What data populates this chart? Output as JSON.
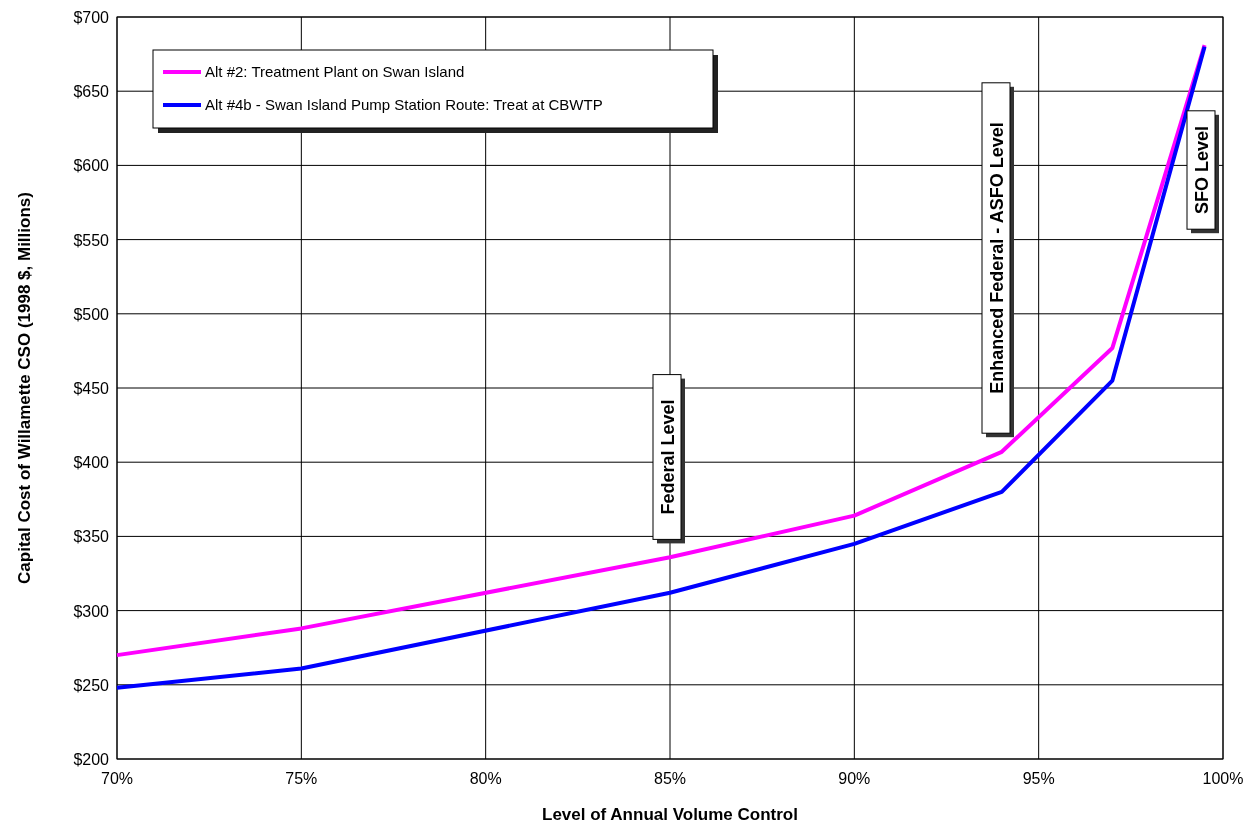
{
  "chart_data": {
    "type": "line",
    "xlabel": "Level of Annual Volume Control",
    "ylabel": "Capital Cost of Willamette CSO (1998 $, Millions)",
    "series": [
      {
        "name": "Alt #2: Treatment Plant on Swan Island",
        "color": "#ff00ff",
        "x": [
          70,
          75,
          85,
          90,
          94,
          97,
          99.5
        ],
        "values": [
          270,
          288,
          336,
          364,
          407,
          477,
          681
        ]
      },
      {
        "name": "Alt #4b - Swan Island Pump Station Route: Treat at CBWTP",
        "color": "#0000ff",
        "x": [
          70,
          75,
          85,
          90,
          94,
          97,
          99.5
        ],
        "values": [
          248,
          261,
          312,
          345,
          380,
          455,
          680
        ]
      }
    ],
    "xlim": [
      70,
      100
    ],
    "xticks": [
      {
        "value": 70,
        "label": "70%"
      },
      {
        "value": 75,
        "label": "75%"
      },
      {
        "value": 80,
        "label": "80%"
      },
      {
        "value": 85,
        "label": "85%"
      },
      {
        "value": 90,
        "label": "90%"
      },
      {
        "value": 95,
        "label": "95%"
      },
      {
        "value": 100,
        "label": "100%"
      }
    ],
    "ylim": [
      200,
      700
    ],
    "yticks": [
      {
        "value": 200,
        "label": "$200"
      },
      {
        "value": 250,
        "label": "$250"
      },
      {
        "value": 300,
        "label": "$300"
      },
      {
        "value": 350,
        "label": "$350"
      },
      {
        "value": 400,
        "label": "$400"
      },
      {
        "value": 450,
        "label": "$450"
      },
      {
        "value": 500,
        "label": "$500"
      },
      {
        "value": 550,
        "label": "$550"
      },
      {
        "value": 600,
        "label": "$600"
      },
      {
        "value": 650,
        "label": "$650"
      },
      {
        "value": 700,
        "label": "$700"
      }
    ],
    "annotations": [
      "Federal Level",
      "Enhanced Federal - ASFO Level",
      "SFO Level"
    ],
    "grid": true,
    "legend": "top left",
    "marker": "none",
    "line_style": "solid"
  }
}
